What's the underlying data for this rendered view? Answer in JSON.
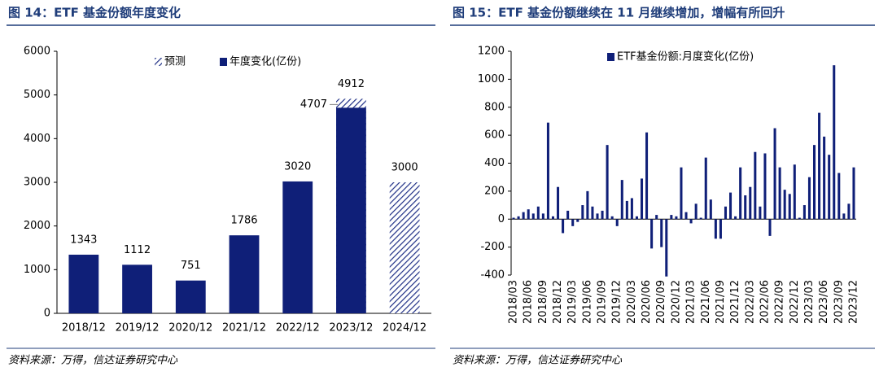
{
  "chart_data": [
    {
      "type": "bar",
      "title": "图 14：ETF 基金份额年度变化",
      "categories": [
        "2018/12",
        "2019/12",
        "2020/12",
        "2021/12",
        "2022/12",
        "2023/12",
        "2024/12"
      ],
      "series": [
        {
          "name": "预测",
          "color": "#1f2f86",
          "pattern": "hatch",
          "values": [
            null,
            null,
            null,
            null,
            null,
            4912,
            3000
          ]
        },
        {
          "name": "年度变化(亿份)",
          "color": "#0f1f78",
          "values": [
            1343,
            1112,
            751,
            1786,
            3020,
            4707,
            null
          ]
        }
      ],
      "ylim": [
        0,
        6000
      ],
      "yticks": [
        0,
        1000,
        2000,
        3000,
        4000,
        5000,
        6000
      ],
      "source": "资料来源：万得，信达证券研究中心"
    },
    {
      "type": "bar",
      "title": "图 15：ETF 基金份额继续在 11 月继续增加，增幅有所回升",
      "categories": [
        "2018/03",
        null,
        null,
        "2018/06",
        null,
        null,
        "2018/09",
        null,
        null,
        "2018/12",
        null,
        null,
        "2019/03",
        null,
        null,
        "2019/06",
        null,
        null,
        "2019/09",
        null,
        null,
        "2019/12",
        null,
        null,
        "2020/03",
        null,
        null,
        "2020/06",
        null,
        null,
        "2020/09",
        null,
        null,
        "2020/12",
        null,
        null,
        "2021/03",
        null,
        null,
        "2021/06",
        null,
        null,
        "2021/09",
        null,
        null,
        "2021/12",
        null,
        null,
        "2022/03",
        null,
        null,
        "2022/06",
        null,
        null,
        "2022/09",
        null,
        null,
        "2022/12",
        null,
        null,
        "2023/03",
        null,
        null,
        "2023/06",
        null,
        null,
        "2023/09",
        null,
        null,
        "2023/12"
      ],
      "series": [
        {
          "name": "ETF基金份额:月度变化(亿份)",
          "color": "#0f1f78",
          "values": [
            10,
            20,
            50,
            70,
            40,
            90,
            40,
            690,
            20,
            230,
            -100,
            60,
            -50,
            -20,
            100,
            200,
            90,
            40,
            60,
            530,
            20,
            -50,
            280,
            130,
            150,
            20,
            290,
            620,
            -210,
            30,
            -200,
            -410,
            30,
            20,
            370,
            50,
            -30,
            110,
            10,
            440,
            140,
            -140,
            -140,
            90,
            190,
            20,
            370,
            170,
            230,
            480,
            90,
            470,
            -120,
            650,
            370,
            210,
            180,
            390,
            10,
            100,
            300,
            530,
            760,
            590,
            460,
            1100,
            330,
            40,
            110,
            370
          ]
        }
      ],
      "ylim": [
        -400,
        1200
      ],
      "yticks": [
        -400,
        -200,
        0,
        200,
        400,
        600,
        800,
        1000,
        1200
      ],
      "source": "资料来源：万得，信达证券研究中心"
    }
  ]
}
